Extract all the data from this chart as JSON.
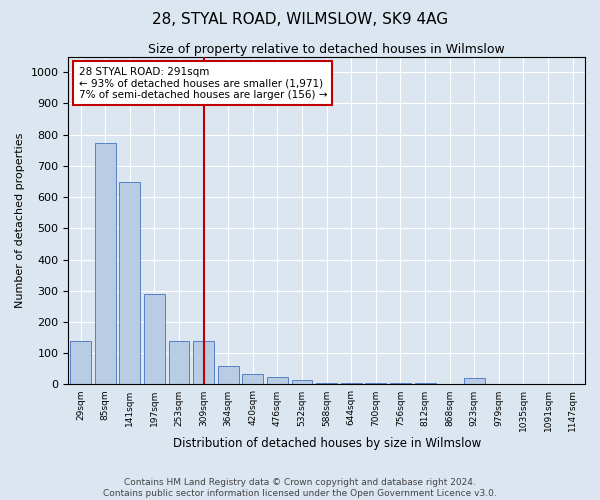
{
  "title": "28, STYAL ROAD, WILMSLOW, SK9 4AG",
  "subtitle": "Size of property relative to detached houses in Wilmslow",
  "xlabel": "Distribution of detached houses by size in Wilmslow",
  "ylabel": "Number of detached properties",
  "footer_line1": "Contains HM Land Registry data © Crown copyright and database right 2024.",
  "footer_line2": "Contains public sector information licensed under the Open Government Licence v3.0.",
  "categories": [
    "29sqm",
    "85sqm",
    "141sqm",
    "197sqm",
    "253sqm",
    "309sqm",
    "364sqm",
    "420sqm",
    "476sqm",
    "532sqm",
    "588sqm",
    "644sqm",
    "700sqm",
    "756sqm",
    "812sqm",
    "868sqm",
    "923sqm",
    "979sqm",
    "1035sqm",
    "1091sqm",
    "1147sqm"
  ],
  "values": [
    140,
    775,
    650,
    290,
    140,
    140,
    60,
    35,
    25,
    15,
    5,
    5,
    5,
    5,
    5,
    0,
    20,
    0,
    0,
    0,
    0
  ],
  "bar_color": "#b8cce4",
  "bar_edge_color": "#4472c4",
  "background_color": "#dce6f1",
  "plot_bg_color": "#dce6f1",
  "annotation_text": "28 STYAL ROAD: 291sqm\n← 93% of detached houses are smaller (1,971)\n7% of semi-detached houses are larger (156) →",
  "annotation_box_color": "#ffffff",
  "annotation_edge_color": "#c00000",
  "vline_x_index": 5,
  "vline_color": "#c00000",
  "ylim": [
    0,
    1050
  ],
  "yticks": [
    0,
    100,
    200,
    300,
    400,
    500,
    600,
    700,
    800,
    900,
    1000
  ]
}
